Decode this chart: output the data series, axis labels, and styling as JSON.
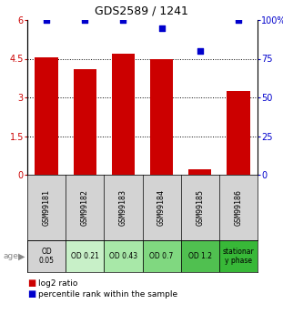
{
  "title": "GDS2589 / 1241",
  "samples": [
    "GSM99181",
    "GSM99182",
    "GSM99183",
    "GSM99184",
    "GSM99185",
    "GSM99186"
  ],
  "log2_ratio": [
    4.55,
    4.1,
    4.7,
    4.5,
    0.2,
    3.25
  ],
  "percentile_rank": [
    100,
    100,
    100,
    95,
    80,
    100
  ],
  "age_labels": [
    "OD\n0.05",
    "OD 0.21",
    "OD 0.43",
    "OD 0.7",
    "OD 1.2",
    "stationar\ny phase"
  ],
  "age_bg_colors": [
    "#d3d3d3",
    "#c8f0c8",
    "#a8e8a8",
    "#80d880",
    "#50c050",
    "#38b838"
  ],
  "sample_bg_color": "#d3d3d3",
  "bar_color": "#cc0000",
  "dot_color": "#0000cc",
  "ylim_left": [
    0,
    6
  ],
  "yticks_left": [
    0,
    1.5,
    3,
    4.5,
    6
  ],
  "yticks_right": [
    0,
    25,
    50,
    75,
    100
  ],
  "legend_bar_label": "log2 ratio",
  "legend_dot_label": "percentile rank within the sample"
}
